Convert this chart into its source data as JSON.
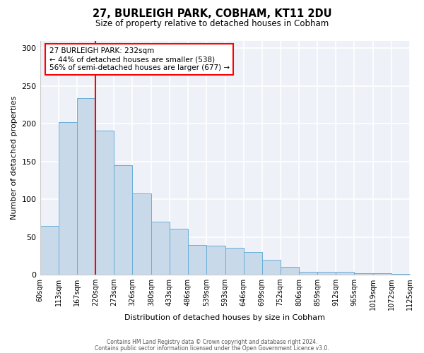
{
  "title": "27, BURLEIGH PARK, COBHAM, KT11 2DU",
  "subtitle": "Size of property relative to detached houses in Cobham",
  "xlabel": "Distribution of detached houses by size in Cobham",
  "ylabel": "Number of detached properties",
  "bin_labels": [
    "60sqm",
    "113sqm",
    "167sqm",
    "220sqm",
    "273sqm",
    "326sqm",
    "380sqm",
    "433sqm",
    "486sqm",
    "539sqm",
    "593sqm",
    "646sqm",
    "699sqm",
    "752sqm",
    "806sqm",
    "859sqm",
    "912sqm",
    "965sqm",
    "1019sqm",
    "1072sqm",
    "1125sqm"
  ],
  "bin_edges": [
    60,
    113,
    167,
    220,
    273,
    326,
    380,
    433,
    486,
    539,
    593,
    646,
    699,
    752,
    806,
    859,
    912,
    965,
    1019,
    1072,
    1125
  ],
  "bar_heights": [
    65,
    202,
    234,
    191,
    145,
    108,
    70,
    61,
    39,
    38,
    36,
    30,
    20,
    10,
    4,
    4,
    4,
    2,
    2,
    1
  ],
  "bar_color": "#c8d9ea",
  "bar_edge_color": "#6aaed6",
  "property_line_x": 220,
  "property_line_color": "red",
  "ylim": [
    0,
    310
  ],
  "yticks": [
    0,
    50,
    100,
    150,
    200,
    250,
    300
  ],
  "annotation_text": "27 BURLEIGH PARK: 232sqm\n← 44% of detached houses are smaller (538)\n56% of semi-detached houses are larger (677) →",
  "annotation_box_color": "white",
  "annotation_box_edge_color": "red",
  "footer_line1": "Contains HM Land Registry data © Crown copyright and database right 2024.",
  "footer_line2": "Contains public sector information licensed under the Open Government Licence v3.0.",
  "background_color": "#ffffff",
  "plot_bg_color": "#eef2f8"
}
